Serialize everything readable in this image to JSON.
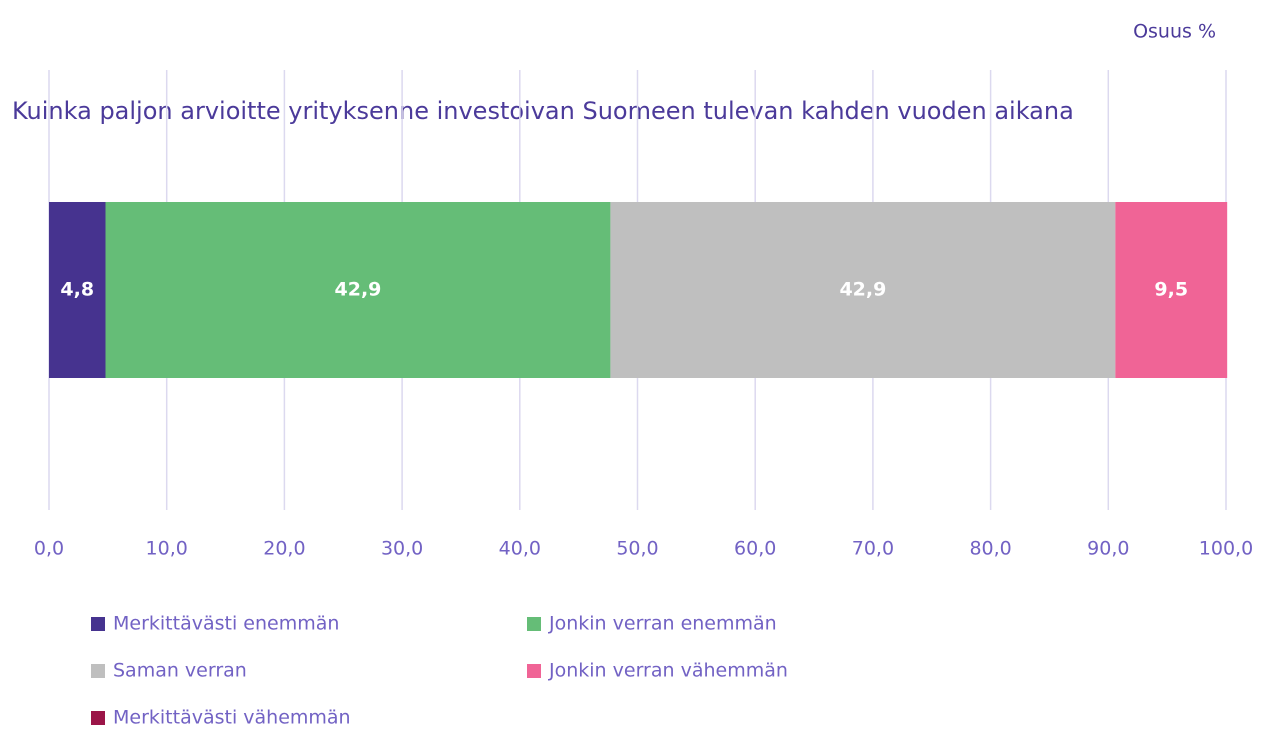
{
  "chart_data": {
    "type": "bar",
    "orientation": "horizontal",
    "stacked": true,
    "annotation": "Osuus %",
    "categories": [
      "Kuinka paljon arvioitte yrityksenne investoivan Suomeen tulevan kahden vuoden aikana"
    ],
    "series": [
      {
        "name": "Merkittävästi enemmän",
        "color": "#46338f",
        "values": [
          4.8
        ],
        "value_labels": [
          "4,8"
        ]
      },
      {
        "name": "Jonkin verran enemmän",
        "color": "#65bd77",
        "values": [
          42.9
        ],
        "value_labels": [
          "42,9"
        ]
      },
      {
        "name": "Saman verran",
        "color": "#bfbfbf",
        "values": [
          42.9
        ],
        "value_labels": [
          "42,9"
        ]
      },
      {
        "name": "Jonkin verran vähemmän",
        "color": "#f06496",
        "values": [
          9.5
        ],
        "value_labels": [
          "9,5"
        ]
      },
      {
        "name": "Merkittävästi vähemmän",
        "color": "#9b1548",
        "values": [
          0
        ]
      }
    ],
    "xlim": [
      0,
      100
    ],
    "xticks": [
      {
        "value": 0,
        "label": "0,0"
      },
      {
        "value": 10,
        "label": "10,0"
      },
      {
        "value": 20,
        "label": "20,0"
      },
      {
        "value": 30,
        "label": "30,0"
      },
      {
        "value": 40,
        "label": "40,0"
      },
      {
        "value": 50,
        "label": "50,0"
      },
      {
        "value": 60,
        "label": "60,0"
      },
      {
        "value": 70,
        "label": "70,0"
      },
      {
        "value": 80,
        "label": "80,0"
      },
      {
        "value": 90,
        "label": "90,0"
      },
      {
        "value": 100,
        "label": "100,0"
      }
    ],
    "grid": true,
    "legend": "bottom"
  }
}
